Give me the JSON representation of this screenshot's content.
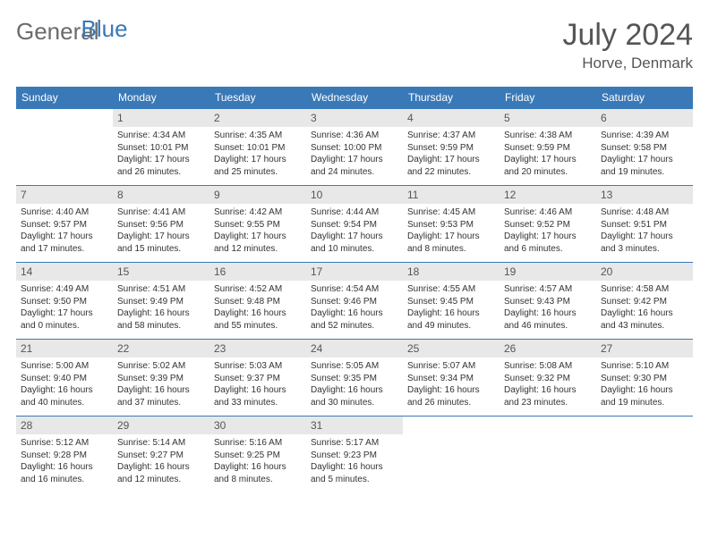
{
  "brand": {
    "part1": "General",
    "part2": "Blue"
  },
  "title": "July 2024",
  "location": "Horve, Denmark",
  "colors": {
    "accent": "#3a79b7",
    "header_text": "#ffffff",
    "daynum_bg": "#e8e8e8",
    "text": "#333333",
    "muted": "#555555"
  },
  "dayHeaders": [
    "Sunday",
    "Monday",
    "Tuesday",
    "Wednesday",
    "Thursday",
    "Friday",
    "Saturday"
  ],
  "weeks": [
    [
      {
        "day": "",
        "sunrise": "",
        "sunset": "",
        "daylight1": "",
        "daylight2": ""
      },
      {
        "day": "1",
        "sunrise": "Sunrise: 4:34 AM",
        "sunset": "Sunset: 10:01 PM",
        "daylight1": "Daylight: 17 hours",
        "daylight2": "and 26 minutes."
      },
      {
        "day": "2",
        "sunrise": "Sunrise: 4:35 AM",
        "sunset": "Sunset: 10:01 PM",
        "daylight1": "Daylight: 17 hours",
        "daylight2": "and 25 minutes."
      },
      {
        "day": "3",
        "sunrise": "Sunrise: 4:36 AM",
        "sunset": "Sunset: 10:00 PM",
        "daylight1": "Daylight: 17 hours",
        "daylight2": "and 24 minutes."
      },
      {
        "day": "4",
        "sunrise": "Sunrise: 4:37 AM",
        "sunset": "Sunset: 9:59 PM",
        "daylight1": "Daylight: 17 hours",
        "daylight2": "and 22 minutes."
      },
      {
        "day": "5",
        "sunrise": "Sunrise: 4:38 AM",
        "sunset": "Sunset: 9:59 PM",
        "daylight1": "Daylight: 17 hours",
        "daylight2": "and 20 minutes."
      },
      {
        "day": "6",
        "sunrise": "Sunrise: 4:39 AM",
        "sunset": "Sunset: 9:58 PM",
        "daylight1": "Daylight: 17 hours",
        "daylight2": "and 19 minutes."
      }
    ],
    [
      {
        "day": "7",
        "sunrise": "Sunrise: 4:40 AM",
        "sunset": "Sunset: 9:57 PM",
        "daylight1": "Daylight: 17 hours",
        "daylight2": "and 17 minutes."
      },
      {
        "day": "8",
        "sunrise": "Sunrise: 4:41 AM",
        "sunset": "Sunset: 9:56 PM",
        "daylight1": "Daylight: 17 hours",
        "daylight2": "and 15 minutes."
      },
      {
        "day": "9",
        "sunrise": "Sunrise: 4:42 AM",
        "sunset": "Sunset: 9:55 PM",
        "daylight1": "Daylight: 17 hours",
        "daylight2": "and 12 minutes."
      },
      {
        "day": "10",
        "sunrise": "Sunrise: 4:44 AM",
        "sunset": "Sunset: 9:54 PM",
        "daylight1": "Daylight: 17 hours",
        "daylight2": "and 10 minutes."
      },
      {
        "day": "11",
        "sunrise": "Sunrise: 4:45 AM",
        "sunset": "Sunset: 9:53 PM",
        "daylight1": "Daylight: 17 hours",
        "daylight2": "and 8 minutes."
      },
      {
        "day": "12",
        "sunrise": "Sunrise: 4:46 AM",
        "sunset": "Sunset: 9:52 PM",
        "daylight1": "Daylight: 17 hours",
        "daylight2": "and 6 minutes."
      },
      {
        "day": "13",
        "sunrise": "Sunrise: 4:48 AM",
        "sunset": "Sunset: 9:51 PM",
        "daylight1": "Daylight: 17 hours",
        "daylight2": "and 3 minutes."
      }
    ],
    [
      {
        "day": "14",
        "sunrise": "Sunrise: 4:49 AM",
        "sunset": "Sunset: 9:50 PM",
        "daylight1": "Daylight: 17 hours",
        "daylight2": "and 0 minutes."
      },
      {
        "day": "15",
        "sunrise": "Sunrise: 4:51 AM",
        "sunset": "Sunset: 9:49 PM",
        "daylight1": "Daylight: 16 hours",
        "daylight2": "and 58 minutes."
      },
      {
        "day": "16",
        "sunrise": "Sunrise: 4:52 AM",
        "sunset": "Sunset: 9:48 PM",
        "daylight1": "Daylight: 16 hours",
        "daylight2": "and 55 minutes."
      },
      {
        "day": "17",
        "sunrise": "Sunrise: 4:54 AM",
        "sunset": "Sunset: 9:46 PM",
        "daylight1": "Daylight: 16 hours",
        "daylight2": "and 52 minutes."
      },
      {
        "day": "18",
        "sunrise": "Sunrise: 4:55 AM",
        "sunset": "Sunset: 9:45 PM",
        "daylight1": "Daylight: 16 hours",
        "daylight2": "and 49 minutes."
      },
      {
        "day": "19",
        "sunrise": "Sunrise: 4:57 AM",
        "sunset": "Sunset: 9:43 PM",
        "daylight1": "Daylight: 16 hours",
        "daylight2": "and 46 minutes."
      },
      {
        "day": "20",
        "sunrise": "Sunrise: 4:58 AM",
        "sunset": "Sunset: 9:42 PM",
        "daylight1": "Daylight: 16 hours",
        "daylight2": "and 43 minutes."
      }
    ],
    [
      {
        "day": "21",
        "sunrise": "Sunrise: 5:00 AM",
        "sunset": "Sunset: 9:40 PM",
        "daylight1": "Daylight: 16 hours",
        "daylight2": "and 40 minutes."
      },
      {
        "day": "22",
        "sunrise": "Sunrise: 5:02 AM",
        "sunset": "Sunset: 9:39 PM",
        "daylight1": "Daylight: 16 hours",
        "daylight2": "and 37 minutes."
      },
      {
        "day": "23",
        "sunrise": "Sunrise: 5:03 AM",
        "sunset": "Sunset: 9:37 PM",
        "daylight1": "Daylight: 16 hours",
        "daylight2": "and 33 minutes."
      },
      {
        "day": "24",
        "sunrise": "Sunrise: 5:05 AM",
        "sunset": "Sunset: 9:35 PM",
        "daylight1": "Daylight: 16 hours",
        "daylight2": "and 30 minutes."
      },
      {
        "day": "25",
        "sunrise": "Sunrise: 5:07 AM",
        "sunset": "Sunset: 9:34 PM",
        "daylight1": "Daylight: 16 hours",
        "daylight2": "and 26 minutes."
      },
      {
        "day": "26",
        "sunrise": "Sunrise: 5:08 AM",
        "sunset": "Sunset: 9:32 PM",
        "daylight1": "Daylight: 16 hours",
        "daylight2": "and 23 minutes."
      },
      {
        "day": "27",
        "sunrise": "Sunrise: 5:10 AM",
        "sunset": "Sunset: 9:30 PM",
        "daylight1": "Daylight: 16 hours",
        "daylight2": "and 19 minutes."
      }
    ],
    [
      {
        "day": "28",
        "sunrise": "Sunrise: 5:12 AM",
        "sunset": "Sunset: 9:28 PM",
        "daylight1": "Daylight: 16 hours",
        "daylight2": "and 16 minutes."
      },
      {
        "day": "29",
        "sunrise": "Sunrise: 5:14 AM",
        "sunset": "Sunset: 9:27 PM",
        "daylight1": "Daylight: 16 hours",
        "daylight2": "and 12 minutes."
      },
      {
        "day": "30",
        "sunrise": "Sunrise: 5:16 AM",
        "sunset": "Sunset: 9:25 PM",
        "daylight1": "Daylight: 16 hours",
        "daylight2": "and 8 minutes."
      },
      {
        "day": "31",
        "sunrise": "Sunrise: 5:17 AM",
        "sunset": "Sunset: 9:23 PM",
        "daylight1": "Daylight: 16 hours",
        "daylight2": "and 5 minutes."
      },
      {
        "day": "",
        "sunrise": "",
        "sunset": "",
        "daylight1": "",
        "daylight2": ""
      },
      {
        "day": "",
        "sunrise": "",
        "sunset": "",
        "daylight1": "",
        "daylight2": ""
      },
      {
        "day": "",
        "sunrise": "",
        "sunset": "",
        "daylight1": "",
        "daylight2": ""
      }
    ]
  ]
}
